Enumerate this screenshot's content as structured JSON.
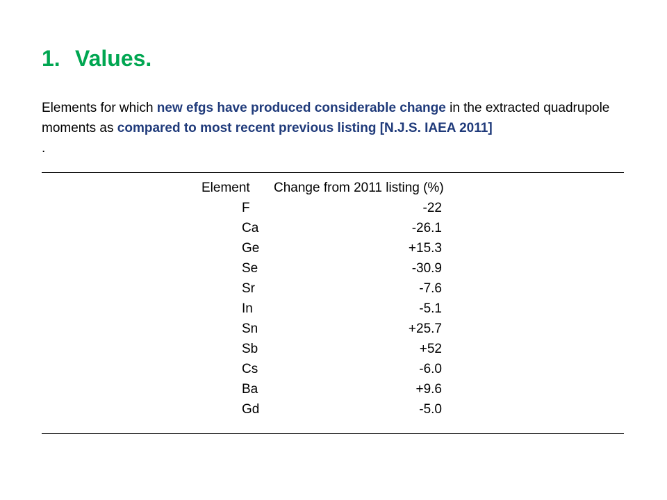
{
  "heading": {
    "number": "1.",
    "text": "Values."
  },
  "intro": {
    "part1": "Elements for which ",
    "highlight1": "new efgs have produced considerable change",
    "part2": " in the extracted quadrupole moments as ",
    "highlight2": "compared to most recent previous listing [N.J.S. IAEA 2011]",
    "trailing": "."
  },
  "table": {
    "columns": [
      "Element",
      "Change from 2011 listing (%)"
    ],
    "rows": [
      {
        "element": "F",
        "change": "-22"
      },
      {
        "element": "Ca",
        "change": "-26.1"
      },
      {
        "element": "Ge",
        "change": "+15.3"
      },
      {
        "element": "Se",
        "change": "-30.9"
      },
      {
        "element": "Sr",
        "change": "-7.6"
      },
      {
        "element": "In",
        "change": "-5.1"
      },
      {
        "element": "Sn",
        "change": "+25.7"
      },
      {
        "element": "Sb",
        "change": "+52"
      },
      {
        "element": "Cs",
        "change": "-6.0"
      },
      {
        "element": "Ba",
        "change": "+9.6"
      },
      {
        "element": "Gd",
        "change": "-5.0"
      }
    ]
  },
  "colors": {
    "heading": "#00a651",
    "highlight": "#1f3a7a",
    "text": "#000000"
  }
}
